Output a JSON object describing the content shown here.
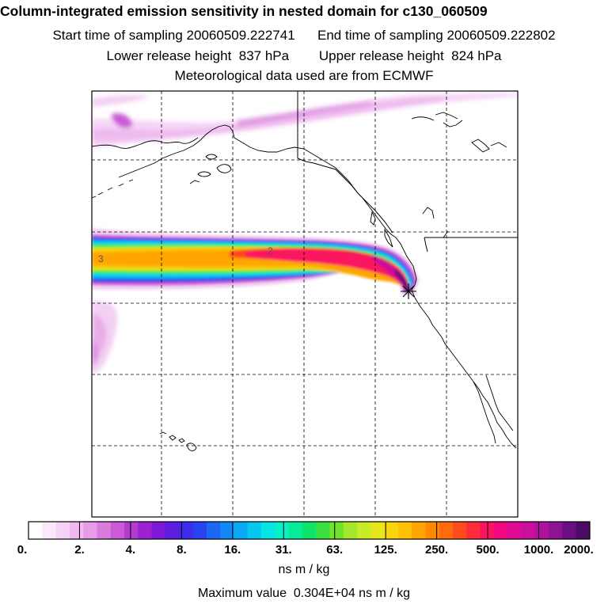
{
  "title": {
    "main": "Column-integrated emission sensitivity in nested domain for c130_060509",
    "start_label": "Start time of sampling 20060509.222741",
    "end_label": "End time of sampling 20060509.222802",
    "lower_label": "Lower release height  837 hPa",
    "upper_label": "Upper release height  824 hPa",
    "met_label": "Meteorological data used are from ECMWF"
  },
  "map": {
    "contour_labels": [
      "3",
      "2"
    ],
    "release_marker": "star"
  },
  "colorbar": {
    "tick_labels": [
      "0.",
      "2.",
      "4.",
      "8.",
      "16.",
      "31.",
      "63.",
      "125.",
      "250.",
      "500.",
      "1000.",
      "2000."
    ],
    "units": "ns m / kg",
    "colors": [
      "#ffffff",
      "#fbe9fb",
      "#f6d2f6",
      "#efb8ef",
      "#e69ce6",
      "#d97cde",
      "#c95cd6",
      "#b33ccf",
      "#9a22d0",
      "#7e17d6",
      "#5f1de0",
      "#3f2bea",
      "#2a43f0",
      "#1b66f2",
      "#1188f3",
      "#0aaaf2",
      "#06c8ee",
      "#07e4e4",
      "#08f0c6",
      "#07eb98",
      "#0ee46a",
      "#3bdf3f",
      "#70e22a",
      "#a3e82a",
      "#c8ec27",
      "#e6e61c",
      "#f8d60f",
      "#ffbf05",
      "#ffa400",
      "#ff8800",
      "#ff6a0c",
      "#ff4a1c",
      "#ff2a3a",
      "#fb1260",
      "#ef0880",
      "#df0a92",
      "#c9109c",
      "#b0129e",
      "#8e1296",
      "#6a0f82",
      "#4a0a66"
    ]
  },
  "max_value": {
    "text": "Maximum value  0.304E+04 ns m / kg"
  }
}
